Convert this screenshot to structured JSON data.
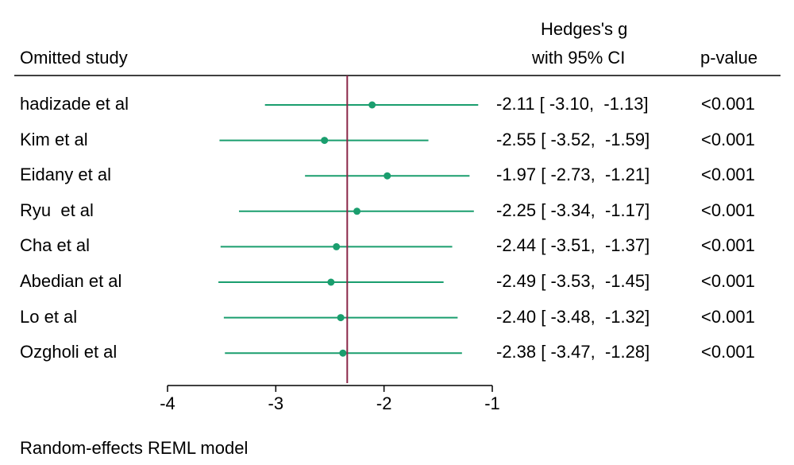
{
  "header": {
    "col_study": "Omitted study",
    "col_effect_line1": "Hedges's g",
    "col_effect_line2": "with 95% CI",
    "col_p": "p-value"
  },
  "footer_note": "Random-effects REML model",
  "chart_data": {
    "type": "forest",
    "xlim": [
      -4,
      -1
    ],
    "xticks": [
      -4,
      -3,
      -2,
      -1
    ],
    "xtick_labels": [
      "-4",
      "-3",
      "-2",
      "-1"
    ],
    "reference_line": -2.34,
    "colors": {
      "ci": "#1a9e6e",
      "point": "#1a9e6e",
      "reference": "#8b2748"
    },
    "rows": [
      {
        "study": "hadizade et al",
        "g": -2.11,
        "lo": -3.1,
        "hi": -1.13,
        "label": "-2.11 [ -3.10,  -1.13]",
        "p": "<0.001"
      },
      {
        "study": "Kim et al",
        "g": -2.55,
        "lo": -3.52,
        "hi": -1.59,
        "label": "-2.55 [ -3.52,  -1.59]",
        "p": "<0.001"
      },
      {
        "study": "Eidany et al",
        "g": -1.97,
        "lo": -2.73,
        "hi": -1.21,
        "label": "-1.97 [ -2.73,  -1.21]",
        "p": "<0.001"
      },
      {
        "study": "Ryu  et al",
        "g": -2.25,
        "lo": -3.34,
        "hi": -1.17,
        "label": "-2.25 [ -3.34,  -1.17]",
        "p": "<0.001"
      },
      {
        "study": "Cha et al",
        "g": -2.44,
        "lo": -3.51,
        "hi": -1.37,
        "label": "-2.44 [ -3.51,  -1.37]",
        "p": "<0.001"
      },
      {
        "study": "Abedian et al",
        "g": -2.49,
        "lo": -3.53,
        "hi": -1.45,
        "label": "-2.49 [ -3.53,  -1.45]",
        "p": "<0.001"
      },
      {
        "study": "Lo et al",
        "g": -2.4,
        "lo": -3.48,
        "hi": -1.32,
        "label": "-2.40 [ -3.48,  -1.32]",
        "p": "<0.001"
      },
      {
        "study": "Ozgholi et al",
        "g": -2.38,
        "lo": -3.47,
        "hi": -1.28,
        "label": "-2.38 [ -3.47,  -1.28]",
        "p": "<0.001"
      }
    ]
  }
}
